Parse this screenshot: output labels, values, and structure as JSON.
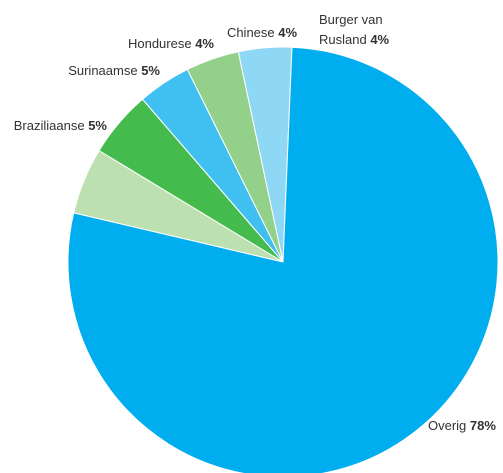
{
  "chart_data": {
    "type": "pie",
    "start_angle_deg": -166.8,
    "direction": "clockwise",
    "slices": [
      {
        "label": "Braziliaanse",
        "value": 5,
        "value_label": "5%",
        "color": "#bde0b1"
      },
      {
        "label": "Surinaamse",
        "value": 5,
        "value_label": "5%",
        "color": "#44bb4c"
      },
      {
        "label": "Hondurese",
        "value": 4,
        "value_label": "4%",
        "color": "#40c0f0"
      },
      {
        "label": "Chinese",
        "value": 4,
        "value_label": "4%",
        "color": "#93d08a"
      },
      {
        "label": "Burger van Rusland",
        "label_lines": [
          "Burger van",
          "Rusland"
        ],
        "value": 4,
        "value_label": "4%",
        "color": "#8fd8f5"
      },
      {
        "label": "Overig",
        "value": 78,
        "value_label": "78%",
        "color": "#00aeef"
      }
    ]
  }
}
